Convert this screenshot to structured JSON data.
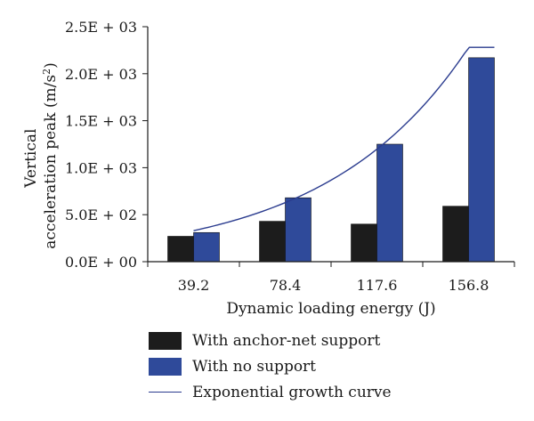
{
  "chart_data": {
    "type": "bar",
    "categories": [
      "39.2",
      "78.4",
      "117.6",
      "156.8"
    ],
    "series": [
      {
        "name": "With anchor-net support",
        "values": [
          270,
          430,
          400,
          590
        ],
        "color": "#1c1c1c"
      },
      {
        "name": "With no support",
        "values": [
          310,
          680,
          1250,
          2170
        ],
        "color": "#2f4a9a"
      }
    ],
    "curve": {
      "name": "Exponential growth curve",
      "color": "#2b3c8f",
      "x": [
        39.2,
        156.8
      ],
      "y_start": 330,
      "y_end": 2280
    },
    "ylim": [
      0,
      2500
    ],
    "yticks": [
      0,
      500,
      1000,
      1500,
      2000,
      2500
    ],
    "ytick_labels": [
      "0.0E + 00",
      "5.0E + 02",
      "1.0E + 03",
      "1.5E + 03",
      "2.0E + 03",
      "2.5E + 03"
    ],
    "xlabel": "Dynamic loading energy (J)",
    "ylabel_line1": "Vertical",
    "ylabel_line2": "acceleration peak (m/s",
    "ylabel_sup": "2",
    "ylabel_close": ")",
    "legend_position": "bottom"
  }
}
